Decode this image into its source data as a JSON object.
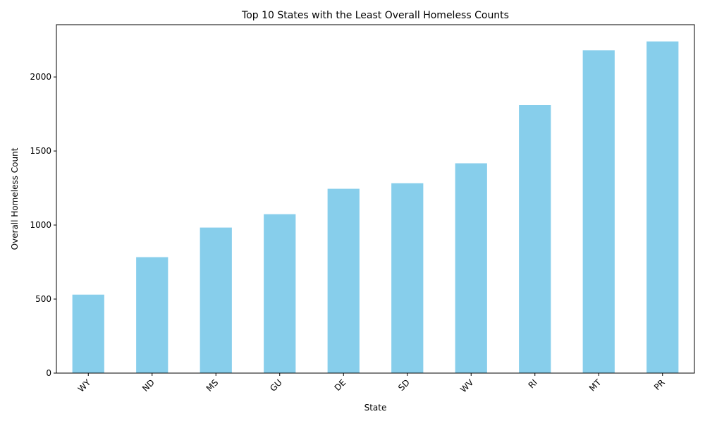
{
  "chart_data": {
    "type": "bar",
    "title": "Top 10 States with the Least Overall Homeless Counts",
    "xlabel": "State",
    "ylabel": "Overall Homeless Count",
    "categories": [
      "WY",
      "ND",
      "MS",
      "GU",
      "DE",
      "SD",
      "WV",
      "RI",
      "MT",
      "PR"
    ],
    "values": [
      530,
      783,
      983,
      1073,
      1245,
      1282,
      1417,
      1810,
      2180,
      2240
    ],
    "ylim": [
      0,
      2353
    ],
    "yticks": [
      0,
      500,
      1000,
      1500,
      2000
    ],
    "bar_color": "#87ceeb",
    "grid": false,
    "legend": "none"
  }
}
